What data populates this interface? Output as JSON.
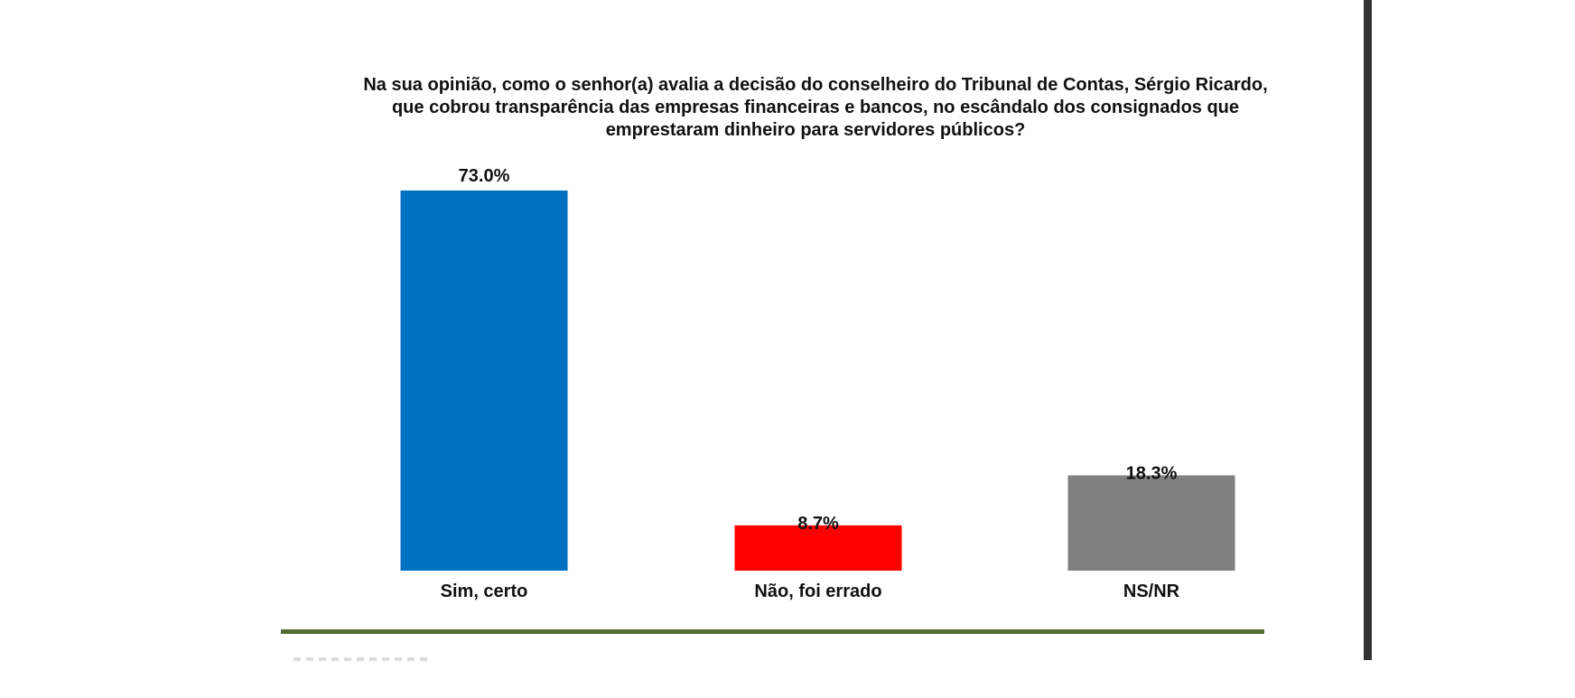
{
  "chart_data": {
    "type": "bar",
    "title": [
      "Na sua opinião, como o senhor(a) avalia a decisão do conselheiro do Tribunal de Contas, Sérgio Ricardo,",
      "que cobrou transparência das empresas financeiras e bancos, no escândalo dos consignados que",
      "emprestaram dinheiro para servidores públicos?"
    ],
    "categories": [
      "Sim, certo",
      "Não, foi errado",
      "NS/NR"
    ],
    "values": [
      73.0,
      8.7,
      18.3
    ],
    "value_labels": [
      "73.0%",
      "8.7%",
      "18.3%"
    ],
    "colors": [
      "#0070C0",
      "#FF0000",
      "#808080"
    ],
    "ylim": [
      0,
      73.0
    ],
    "grid": false,
    "legend": "none"
  }
}
